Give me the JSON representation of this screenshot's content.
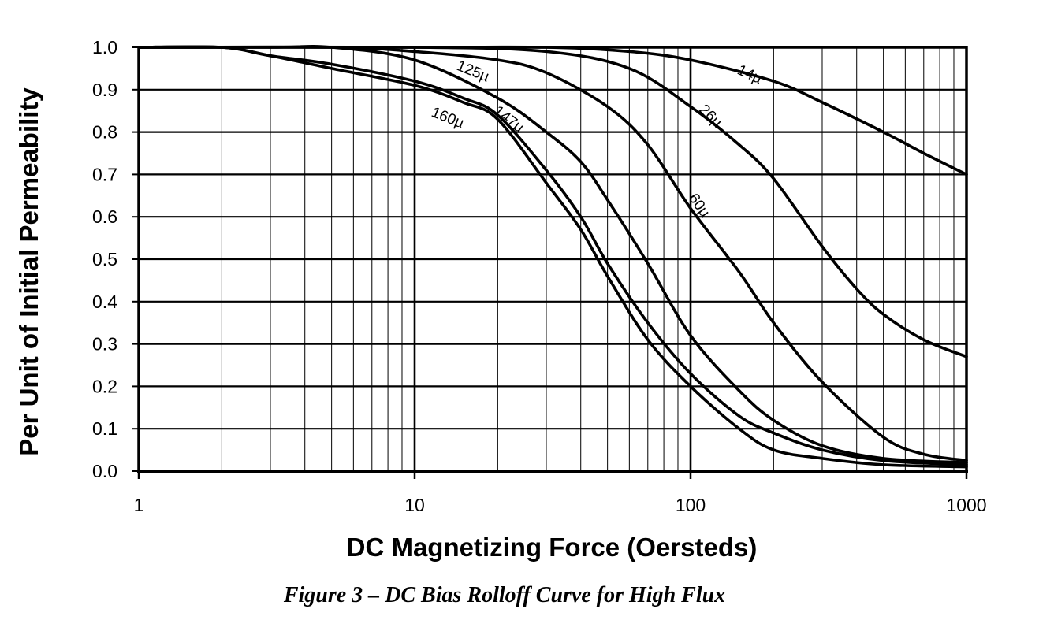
{
  "chart_data": {
    "type": "line",
    "x_scale": "log",
    "xlabel": "DC Magnetizing Force (Oersteds)",
    "ylabel": "Per Unit of Initial Permeability",
    "xlim": [
      1,
      1000
    ],
    "ylim": [
      0,
      1.0
    ],
    "x_ticks": [
      "1",
      "10",
      "100",
      "1000"
    ],
    "y_ticks": [
      "0.0",
      "0.1",
      "0.2",
      "0.3",
      "0.4",
      "0.5",
      "0.6",
      "0.7",
      "0.8",
      "0.9",
      "1.0"
    ],
    "grid": true,
    "series": [
      {
        "name": "14µ",
        "label": "14µ",
        "x": [
          1,
          10,
          30,
          60,
          100,
          200,
          300,
          500,
          700,
          1000
        ],
        "y": [
          1.0,
          1.0,
          1.0,
          0.99,
          0.97,
          0.92,
          0.87,
          0.8,
          0.75,
          0.7
        ]
      },
      {
        "name": "26µ",
        "label": "26µ",
        "x": [
          1,
          10,
          30,
          60,
          100,
          150,
          200,
          300,
          400,
          500,
          700,
          1000
        ],
        "y": [
          1.0,
          1.0,
          0.99,
          0.95,
          0.86,
          0.77,
          0.69,
          0.53,
          0.43,
          0.37,
          0.31,
          0.27
        ]
      },
      {
        "name": "60µ",
        "label": "60µ",
        "x": [
          1,
          5,
          10,
          20,
          30,
          50,
          70,
          100,
          150,
          200,
          300,
          500,
          700,
          1000
        ],
        "y": [
          1.0,
          1.0,
          0.99,
          0.97,
          0.94,
          0.86,
          0.77,
          0.62,
          0.47,
          0.35,
          0.21,
          0.08,
          0.04,
          0.025
        ]
      },
      {
        "name": "125µ",
        "label": "125µ",
        "x": [
          1,
          3,
          5,
          10,
          20,
          30,
          40,
          50,
          70,
          100,
          150,
          200,
          300,
          500,
          1000
        ],
        "y": [
          1.0,
          1.0,
          1.0,
          0.97,
          0.88,
          0.8,
          0.73,
          0.64,
          0.49,
          0.32,
          0.19,
          0.12,
          0.06,
          0.03,
          0.02
        ]
      },
      {
        "name": "147µ",
        "label": "147µ",
        "x": [
          1,
          2,
          3,
          5,
          10,
          15,
          20,
          30,
          40,
          50,
          70,
          100,
          150,
          200,
          300,
          500,
          1000
        ],
        "y": [
          1.0,
          1.0,
          0.98,
          0.96,
          0.92,
          0.88,
          0.84,
          0.71,
          0.6,
          0.49,
          0.35,
          0.23,
          0.13,
          0.09,
          0.05,
          0.025,
          0.015
        ]
      },
      {
        "name": "160µ",
        "label": "160µ",
        "x": [
          1,
          2,
          3,
          5,
          10,
          15,
          20,
          30,
          40,
          50,
          70,
          100,
          150,
          200,
          300,
          500,
          1000
        ],
        "y": [
          1.0,
          1.0,
          0.98,
          0.95,
          0.91,
          0.87,
          0.83,
          0.68,
          0.57,
          0.46,
          0.31,
          0.2,
          0.1,
          0.05,
          0.03,
          0.015,
          0.01
        ]
      }
    ]
  },
  "caption": "Figure 3 – DC Bias Rolloff Curve for High Flux"
}
